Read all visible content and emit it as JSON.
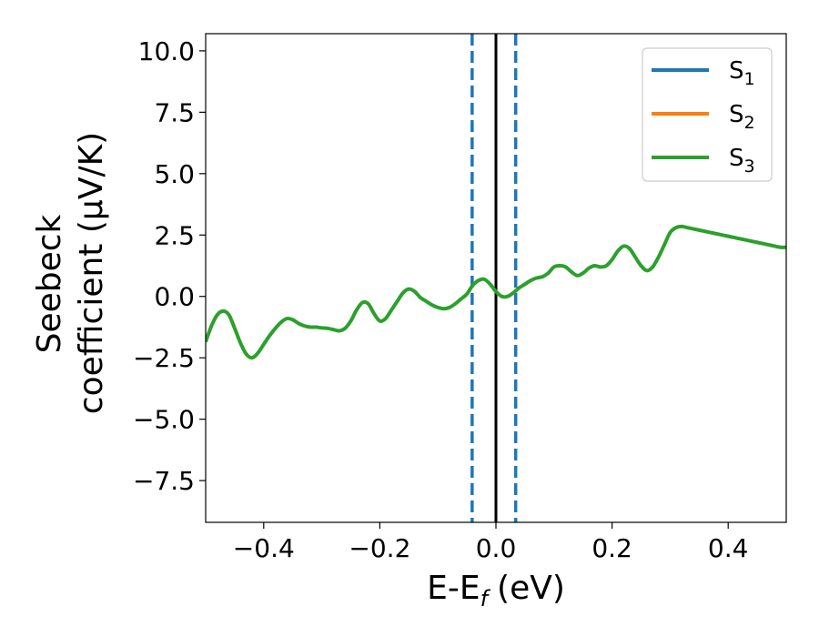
{
  "chart_data": {
    "type": "line",
    "xlabel_main": "E-E",
    "xlabel_sub": "f",
    "xlabel_unit": "(eV)",
    "ylabel_line1": "Seebeck",
    "ylabel_line2": "coefficient  (μV/K)",
    "xlim": [
      -0.5,
      0.5
    ],
    "ylim": [
      -9.2,
      10.7
    ],
    "x_ticks": [
      -0.4,
      -0.2,
      0.0,
      0.2,
      0.4
    ],
    "x_tick_labels": [
      "−0.4",
      "−0.2",
      "0.0",
      "0.2",
      "0.4"
    ],
    "y_ticks": [
      -7.5,
      -5.0,
      -2.5,
      0.0,
      2.5,
      5.0,
      7.5,
      10.0
    ],
    "y_tick_labels": [
      "−7.5",
      "−5.0",
      "−2.5",
      "0.0",
      "2.5",
      "5.0",
      "7.5",
      "10.0"
    ],
    "grid": false,
    "legend_position": "upper right",
    "legend": [
      {
        "base": "S",
        "sub": "1",
        "color": "#1f77b4"
      },
      {
        "base": "S",
        "sub": "2",
        "color": "#ff7f0e"
      },
      {
        "base": "S",
        "sub": "3",
        "color": "#2ca02c"
      }
    ],
    "vertical_lines": [
      {
        "x": -0.041,
        "style": "dashed",
        "color": "#1f77b4"
      },
      {
        "x": 0.0,
        "style": "solid",
        "color": "#000000"
      },
      {
        "x": 0.034,
        "style": "dashed",
        "color": "#1f77b4"
      }
    ],
    "series": [
      {
        "name": "S3",
        "color": "#2ca02c",
        "x": [
          -0.5,
          -0.49,
          -0.48,
          -0.47,
          -0.46,
          -0.45,
          -0.44,
          -0.43,
          -0.42,
          -0.41,
          -0.4,
          -0.39,
          -0.38,
          -0.37,
          -0.36,
          -0.35,
          -0.34,
          -0.33,
          -0.32,
          -0.31,
          -0.3,
          -0.29,
          -0.28,
          -0.27,
          -0.26,
          -0.25,
          -0.24,
          -0.23,
          -0.22,
          -0.21,
          -0.2,
          -0.19,
          -0.18,
          -0.17,
          -0.16,
          -0.15,
          -0.14,
          -0.13,
          -0.12,
          -0.11,
          -0.1,
          -0.09,
          -0.08,
          -0.07,
          -0.06,
          -0.05,
          -0.04,
          -0.03,
          -0.02,
          -0.01,
          0.0,
          0.01,
          0.02,
          0.03,
          0.04,
          0.05,
          0.06,
          0.07,
          0.08,
          0.09,
          0.1,
          0.11,
          0.12,
          0.13,
          0.14,
          0.15,
          0.16,
          0.17,
          0.18,
          0.19,
          0.2,
          0.21,
          0.22,
          0.23,
          0.24,
          0.25,
          0.26,
          0.27,
          0.28,
          0.29,
          0.3,
          0.31,
          0.32,
          0.33,
          0.34,
          0.35,
          0.36,
          0.37,
          0.38,
          0.39,
          0.4,
          0.41,
          0.42,
          0.43,
          0.44,
          0.45,
          0.46,
          0.47,
          0.48,
          0.49,
          0.5
        ],
        "y": [
          -1.85,
          -1.2,
          -0.75,
          -0.6,
          -0.75,
          -1.3,
          -1.9,
          -2.35,
          -2.5,
          -2.3,
          -1.95,
          -1.6,
          -1.3,
          -1.05,
          -0.9,
          -0.95,
          -1.1,
          -1.2,
          -1.25,
          -1.25,
          -1.28,
          -1.3,
          -1.35,
          -1.4,
          -1.3,
          -1.0,
          -0.55,
          -0.25,
          -0.3,
          -0.7,
          -1.0,
          -0.9,
          -0.55,
          -0.2,
          0.15,
          0.3,
          0.2,
          -0.05,
          -0.2,
          -0.35,
          -0.45,
          -0.5,
          -0.45,
          -0.3,
          -0.1,
          0.1,
          0.45,
          0.65,
          0.7,
          0.5,
          0.2,
          0.0,
          0.0,
          0.15,
          0.35,
          0.5,
          0.65,
          0.75,
          0.8,
          0.95,
          1.2,
          1.25,
          1.2,
          1.0,
          0.85,
          0.95,
          1.15,
          1.25,
          1.2,
          1.25,
          1.5,
          1.85,
          2.05,
          1.95,
          1.6,
          1.25,
          1.05,
          1.2,
          1.6,
          2.1,
          2.6,
          2.8,
          2.85,
          2.8,
          2.75,
          2.7,
          2.65,
          2.6,
          2.55,
          2.5,
          2.45,
          2.4,
          2.35,
          2.3,
          2.25,
          2.2,
          2.15,
          2.1,
          2.05,
          2.0,
          2.0
        ]
      }
    ]
  }
}
